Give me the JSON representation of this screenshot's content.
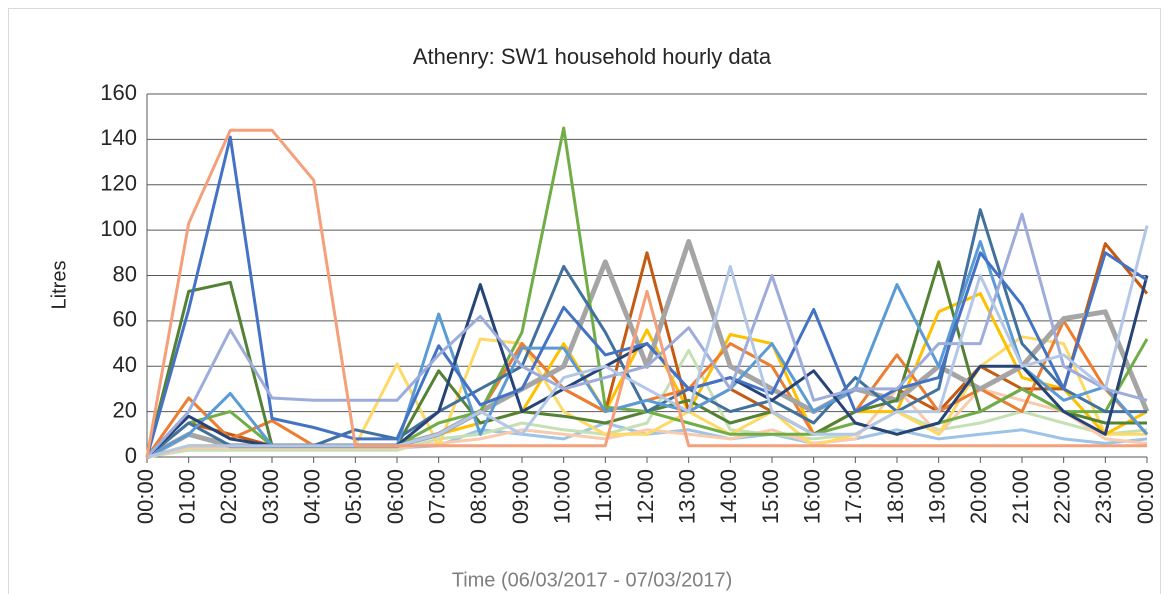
{
  "chart_data": {
    "type": "line",
    "title": "Athenry: SW1 household hourly data",
    "x_label": "Time (06/03/2017 - 07/03/2017)",
    "y_label": "Litres",
    "categories": [
      "00:00",
      "01:00",
      "02:00",
      "03:00",
      "04:00",
      "05:00",
      "06:00",
      "07:00",
      "08:00",
      "09:00",
      "10:00",
      "11:00",
      "12:00",
      "13:00",
      "14:00",
      "15:00",
      "16:00",
      "17:00",
      "18:00",
      "19:00",
      "20:00",
      "21:00",
      "22:00",
      "23:00",
      "00:00"
    ],
    "ylim": [
      0,
      160
    ],
    "yticks": [
      0,
      20,
      40,
      60,
      80,
      100,
      120,
      140,
      160
    ],
    "grid": true,
    "series": [
      {
        "color": "#9dc3e6",
        "values": [
          0,
          5,
          5,
          4,
          4,
          4,
          4,
          5,
          12,
          10,
          8,
          15,
          10,
          12,
          8,
          10,
          6,
          8,
          12,
          8,
          10,
          12,
          8,
          6,
          8
        ]
      },
      {
        "color": "#c5e0b4",
        "values": [
          0,
          3,
          3,
          3,
          3,
          3,
          3,
          8,
          10,
          15,
          12,
          10,
          15,
          47,
          12,
          10,
          8,
          10,
          20,
          12,
          15,
          20,
          15,
          10,
          12
        ]
      },
      {
        "color": "#f8cbad",
        "values": [
          0,
          4,
          4,
          4,
          4,
          4,
          4,
          6,
          8,
          12,
          10,
          8,
          12,
          10,
          8,
          12,
          6,
          8,
          30,
          10,
          30,
          25,
          20,
          8,
          6
        ]
      },
      {
        "color": "#ffd966",
        "values": [
          0,
          5,
          5,
          5,
          5,
          5,
          41,
          5,
          52,
          50,
          20,
          10,
          10,
          20,
          10,
          20,
          5,
          10,
          20,
          10,
          40,
          53,
          50,
          10,
          10
        ]
      },
      {
        "color": "#ffc000",
        "values": [
          0,
          5,
          5,
          5,
          5,
          5,
          5,
          10,
          15,
          20,
          50,
          20,
          56,
          20,
          54,
          50,
          10,
          20,
          20,
          64,
          72,
          35,
          30,
          10,
          20
        ]
      },
      {
        "color": "#c55a11",
        "values": [
          0,
          15,
          10,
          5,
          5,
          5,
          5,
          10,
          20,
          50,
          30,
          20,
          90,
          20,
          30,
          20,
          10,
          20,
          30,
          20,
          40,
          30,
          30,
          94,
          72
        ]
      },
      {
        "color": "#ed7d31",
        "values": [
          0,
          26,
          8,
          16,
          5,
          5,
          5,
          10,
          20,
          50,
          30,
          20,
          25,
          30,
          50,
          40,
          10,
          20,
          45,
          20,
          30,
          20,
          60,
          30,
          10
        ]
      },
      {
        "color": "#a5a5a5",
        "values": [
          0,
          10,
          5,
          5,
          5,
          5,
          5,
          10,
          20,
          30,
          40,
          86,
          40,
          95,
          40,
          30,
          20,
          30,
          25,
          40,
          30,
          40,
          61,
          64,
          20
        ]
      },
      {
        "color": "#548235",
        "values": [
          0,
          73,
          77,
          5,
          5,
          5,
          5,
          38,
          15,
          20,
          18,
          15,
          20,
          25,
          15,
          20,
          10,
          20,
          25,
          86,
          20,
          30,
          20,
          15,
          15
        ]
      },
      {
        "color": "#70ad47",
        "values": [
          0,
          15,
          20,
          5,
          5,
          5,
          5,
          15,
          20,
          55,
          145,
          22,
          20,
          15,
          10,
          10,
          10,
          15,
          10,
          15,
          20,
          30,
          20,
          20,
          52
        ]
      },
      {
        "color": "#41719c",
        "values": [
          0,
          15,
          5,
          5,
          5,
          12,
          8,
          20,
          30,
          40,
          84,
          55,
          20,
          30,
          20,
          25,
          15,
          35,
          20,
          30,
          109,
          50,
          30,
          20,
          20
        ]
      },
      {
        "color": "#5b9bd5",
        "values": [
          0,
          10,
          28,
          5,
          5,
          5,
          5,
          63,
          10,
          48,
          48,
          20,
          25,
          20,
          30,
          50,
          20,
          30,
          76,
          40,
          95,
          40,
          25,
          31,
          10
        ]
      },
      {
        "color": "#264478",
        "values": [
          0,
          18,
          8,
          5,
          5,
          5,
          5,
          20,
          76,
          20,
          30,
          40,
          50,
          30,
          35,
          25,
          38,
          15,
          10,
          15,
          40,
          40,
          20,
          10,
          80
        ]
      },
      {
        "color": "#4472c4",
        "values": [
          0,
          65,
          141,
          17,
          13,
          8,
          8,
          49,
          23,
          30,
          66,
          45,
          50,
          30,
          35,
          28,
          65,
          20,
          30,
          35,
          90,
          67,
          30,
          90,
          78
        ]
      },
      {
        "color": "#9dacdb",
        "values": [
          0,
          20,
          56,
          26,
          25,
          25,
          25,
          45,
          62,
          40,
          30,
          35,
          40,
          57,
          30,
          80,
          25,
          30,
          30,
          50,
          50,
          107,
          40,
          30,
          25
        ]
      },
      {
        "color": "#b4c7e7",
        "values": [
          0,
          5,
          5,
          5,
          5,
          5,
          5,
          10,
          20,
          10,
          35,
          40,
          30,
          20,
          84,
          20,
          10,
          10,
          20,
          20,
          80,
          40,
          45,
          30,
          102
        ]
      },
      {
        "color": "#f4a07a",
        "values": [
          0,
          103,
          144,
          144,
          122,
          5,
          5,
          5,
          5,
          5,
          5,
          5,
          73,
          5,
          5,
          5,
          5,
          5,
          5,
          5,
          5,
          5,
          5,
          5,
          5
        ]
      }
    ]
  }
}
